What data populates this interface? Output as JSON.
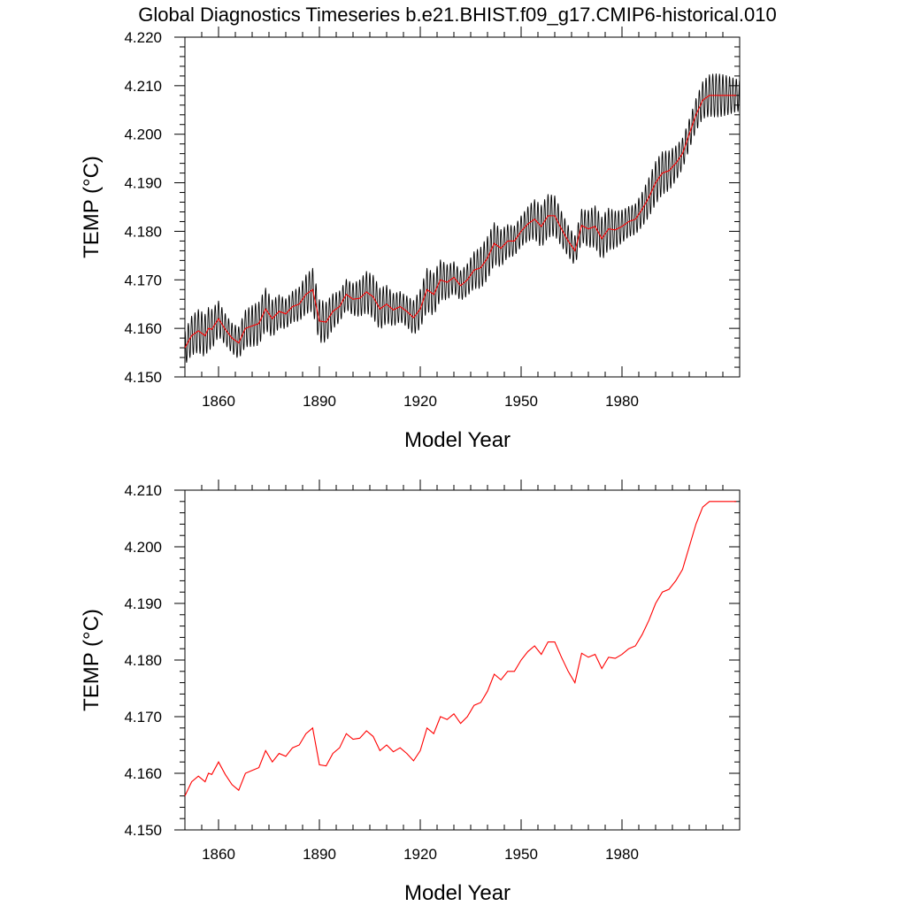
{
  "colors": {
    "monthly": "#000000",
    "annual": "#ff0000",
    "frame": "#000000",
    "background": "#ffffff"
  },
  "chart_data": [
    {
      "type": "line",
      "title": "Global Diagnostics Timeseries b.e21.BHIST.f09_g17.CMIP6-historical.010",
      "xlabel": "Model Year",
      "ylabel": "TEMP (°C)",
      "xlim": [
        1850,
        2015
      ],
      "ylim": [
        4.15,
        4.22
      ],
      "xticks": [
        1860,
        1890,
        1920,
        1950,
        1980
      ],
      "xtick_labels": [
        "1860",
        "1890",
        "1920",
        "1950",
        "1980"
      ],
      "yticks": [
        4.15,
        4.16,
        4.17,
        4.18,
        4.19,
        4.2,
        4.21,
        4.22
      ],
      "ytick_labels": [
        "4.150",
        "4.160",
        "4.170",
        "4.180",
        "4.190",
        "4.200",
        "4.210",
        "4.220"
      ],
      "grid": false,
      "seasonal_half_amplitude": 0.0045,
      "series": [
        {
          "role": "monthly",
          "color": "#000000",
          "derived_from": "annual mean with seasonal cycle"
        },
        {
          "role": "annual",
          "color": "#ff0000",
          "x": [
            1850,
            1852,
            1854,
            1856,
            1857,
            1858,
            1860,
            1862,
            1864,
            1866,
            1868,
            1870,
            1872,
            1874,
            1876,
            1878,
            1880,
            1882,
            1884,
            1886,
            1888,
            1890,
            1892,
            1894,
            1896,
            1898,
            1900,
            1902,
            1904,
            1906,
            1908,
            1910,
            1912,
            1914,
            1916,
            1918,
            1920,
            1922,
            1924,
            1926,
            1928,
            1930,
            1932,
            1934,
            1936,
            1938,
            1940,
            1942,
            1944,
            1946,
            1948,
            1950,
            1952,
            1954,
            1956,
            1958,
            1960,
            1962,
            1964,
            1966,
            1968,
            1970,
            1972,
            1974,
            1976,
            1978,
            1980,
            1982,
            1984,
            1986,
            1988,
            1990,
            1992,
            1994,
            1996,
            1998,
            2000,
            2002,
            2004,
            2006,
            2008,
            2010,
            2012,
            2014
          ],
          "y": [
            4.156,
            4.1585,
            4.1595,
            4.1585,
            4.16,
            4.1598,
            4.162,
            4.1598,
            4.158,
            4.157,
            4.16,
            4.1605,
            4.161,
            4.164,
            4.162,
            4.1635,
            4.163,
            4.1645,
            4.165,
            4.167,
            4.168,
            4.1615,
            4.1613,
            4.1635,
            4.1645,
            4.167,
            4.166,
            4.1662,
            4.1675,
            4.1665,
            4.164,
            4.165,
            4.1638,
            4.1645,
            4.1635,
            4.1622,
            4.164,
            4.168,
            4.167,
            4.17,
            4.1695,
            4.1705,
            4.1688,
            4.17,
            4.172,
            4.1725,
            4.1745,
            4.1775,
            4.1765,
            4.178,
            4.178,
            4.18,
            4.1815,
            4.1825,
            4.181,
            4.1832,
            4.1832,
            4.1805,
            4.178,
            4.176,
            4.1812,
            4.1805,
            4.181,
            4.1785,
            4.1805,
            4.1803,
            4.181,
            4.182,
            4.1825,
            4.1845,
            4.187,
            4.19,
            4.192,
            4.1925,
            4.194,
            4.196,
            4.2,
            4.204,
            4.207,
            4.208,
            4.208,
            4.208,
            4.208,
            4.208
          ]
        }
      ]
    },
    {
      "type": "line",
      "title": "",
      "xlabel": "Model Year",
      "ylabel": "TEMP (°C)",
      "xlim": [
        1850,
        2015
      ],
      "ylim": [
        4.15,
        4.21
      ],
      "xticks": [
        1860,
        1890,
        1920,
        1950,
        1980
      ],
      "xtick_labels": [
        "1860",
        "1890",
        "1920",
        "1950",
        "1980"
      ],
      "yticks": [
        4.15,
        4.16,
        4.17,
        4.18,
        4.19,
        4.2,
        4.21
      ],
      "ytick_labels": [
        "4.150",
        "4.160",
        "4.170",
        "4.180",
        "4.190",
        "4.200",
        "4.210"
      ],
      "grid": false,
      "series": [
        {
          "role": "annual",
          "color": "#ff0000",
          "x": [
            1850,
            1852,
            1854,
            1856,
            1857,
            1858,
            1860,
            1862,
            1864,
            1866,
            1868,
            1870,
            1872,
            1874,
            1876,
            1878,
            1880,
            1882,
            1884,
            1886,
            1888,
            1890,
            1892,
            1894,
            1896,
            1898,
            1900,
            1902,
            1904,
            1906,
            1908,
            1910,
            1912,
            1914,
            1916,
            1918,
            1920,
            1922,
            1924,
            1926,
            1928,
            1930,
            1932,
            1934,
            1936,
            1938,
            1940,
            1942,
            1944,
            1946,
            1948,
            1950,
            1952,
            1954,
            1956,
            1958,
            1960,
            1962,
            1964,
            1966,
            1968,
            1970,
            1972,
            1974,
            1976,
            1978,
            1980,
            1982,
            1984,
            1986,
            1988,
            1990,
            1992,
            1994,
            1996,
            1998,
            2000,
            2002,
            2004,
            2006,
            2008,
            2010,
            2012,
            2014
          ],
          "y": [
            4.156,
            4.1585,
            4.1595,
            4.1585,
            4.16,
            4.1598,
            4.162,
            4.1598,
            4.158,
            4.157,
            4.16,
            4.1605,
            4.161,
            4.164,
            4.162,
            4.1635,
            4.163,
            4.1645,
            4.165,
            4.167,
            4.168,
            4.1615,
            4.1613,
            4.1635,
            4.1645,
            4.167,
            4.166,
            4.1662,
            4.1675,
            4.1665,
            4.164,
            4.165,
            4.1638,
            4.1645,
            4.1635,
            4.1622,
            4.164,
            4.168,
            4.167,
            4.17,
            4.1695,
            4.1705,
            4.1688,
            4.17,
            4.172,
            4.1725,
            4.1745,
            4.1775,
            4.1765,
            4.178,
            4.178,
            4.18,
            4.1815,
            4.1825,
            4.181,
            4.1832,
            4.1832,
            4.1805,
            4.178,
            4.176,
            4.1812,
            4.1805,
            4.181,
            4.1785,
            4.1805,
            4.1803,
            4.181,
            4.182,
            4.1825,
            4.1845,
            4.187,
            4.19,
            4.192,
            4.1925,
            4.194,
            4.196,
            4.2,
            4.204,
            4.207,
            4.208,
            4.208,
            4.208,
            4.208,
            4.208
          ]
        }
      ]
    }
  ]
}
